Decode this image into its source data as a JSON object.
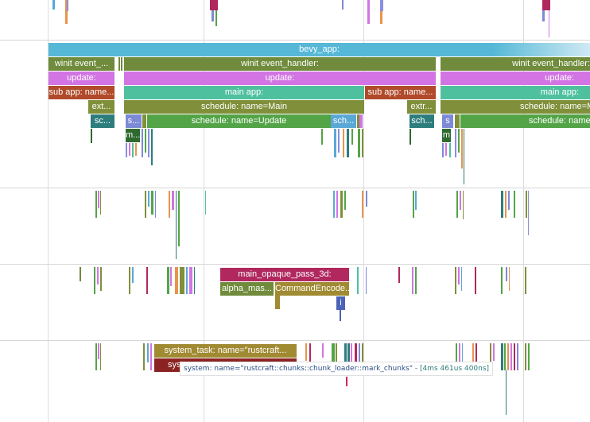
{
  "colors": {
    "bevy": "#56b8d6",
    "winit": "#6f8b3b",
    "update": "#d274e3",
    "sub_app": "#b04a2a",
    "main_app": "#4fc09e",
    "schedule_olive": "#7f8f3a",
    "schedule_green": "#53a447",
    "periwinkle": "#7d8ad6",
    "magenta": "#b0285e",
    "sky": "#5aa8d6",
    "gold": "#a08a32",
    "crimson": "#a12828",
    "mark": "#2e6a2e"
  },
  "track1": {
    "bevy_app": "bevy_app:",
    "winit_left": "winit event_...",
    "winit_mid": "winit event_handler:",
    "winit_right": "winit event_handler:",
    "update_left": "update:",
    "update_mid": "update:",
    "update_right": "update:",
    "subapp_left": "sub app: name...",
    "mainapp_mid": "main app:",
    "subapp_mid": "sub app: name...",
    "mainapp_right": "main app:",
    "ext_left": "ext...",
    "sched_main_mid": "schedule: name=Main",
    "extr_mid": "extr...",
    "sched_main_right": "schedule: name=M...",
    "sc_left": "sc...",
    "s_mid": "s...",
    "sched_update_mid": "schedule: name=Update",
    "sch_mid": "sch...",
    "sch_mid2": "sch...",
    "s_right": "s",
    "sched_update_right": "schedule: name=Update",
    "m_mid": "m...",
    "m_right": "m"
  },
  "track3": {
    "main_opaque": "main_opaque_pass_3d:",
    "alpha_mask": "alpha_mas...",
    "command_encoder": "CommandEncode...",
    "i_label": "i"
  },
  "track4": {
    "system_task": "system_task: name=\"rustcraft...",
    "syst": "syst"
  },
  "tooltip": {
    "text": "system: name=\"rustcraft::chunks::chunk_loader::mark_chunks\"",
    "separator": " - ",
    "duration": "[4ms 461us 400ns]"
  }
}
